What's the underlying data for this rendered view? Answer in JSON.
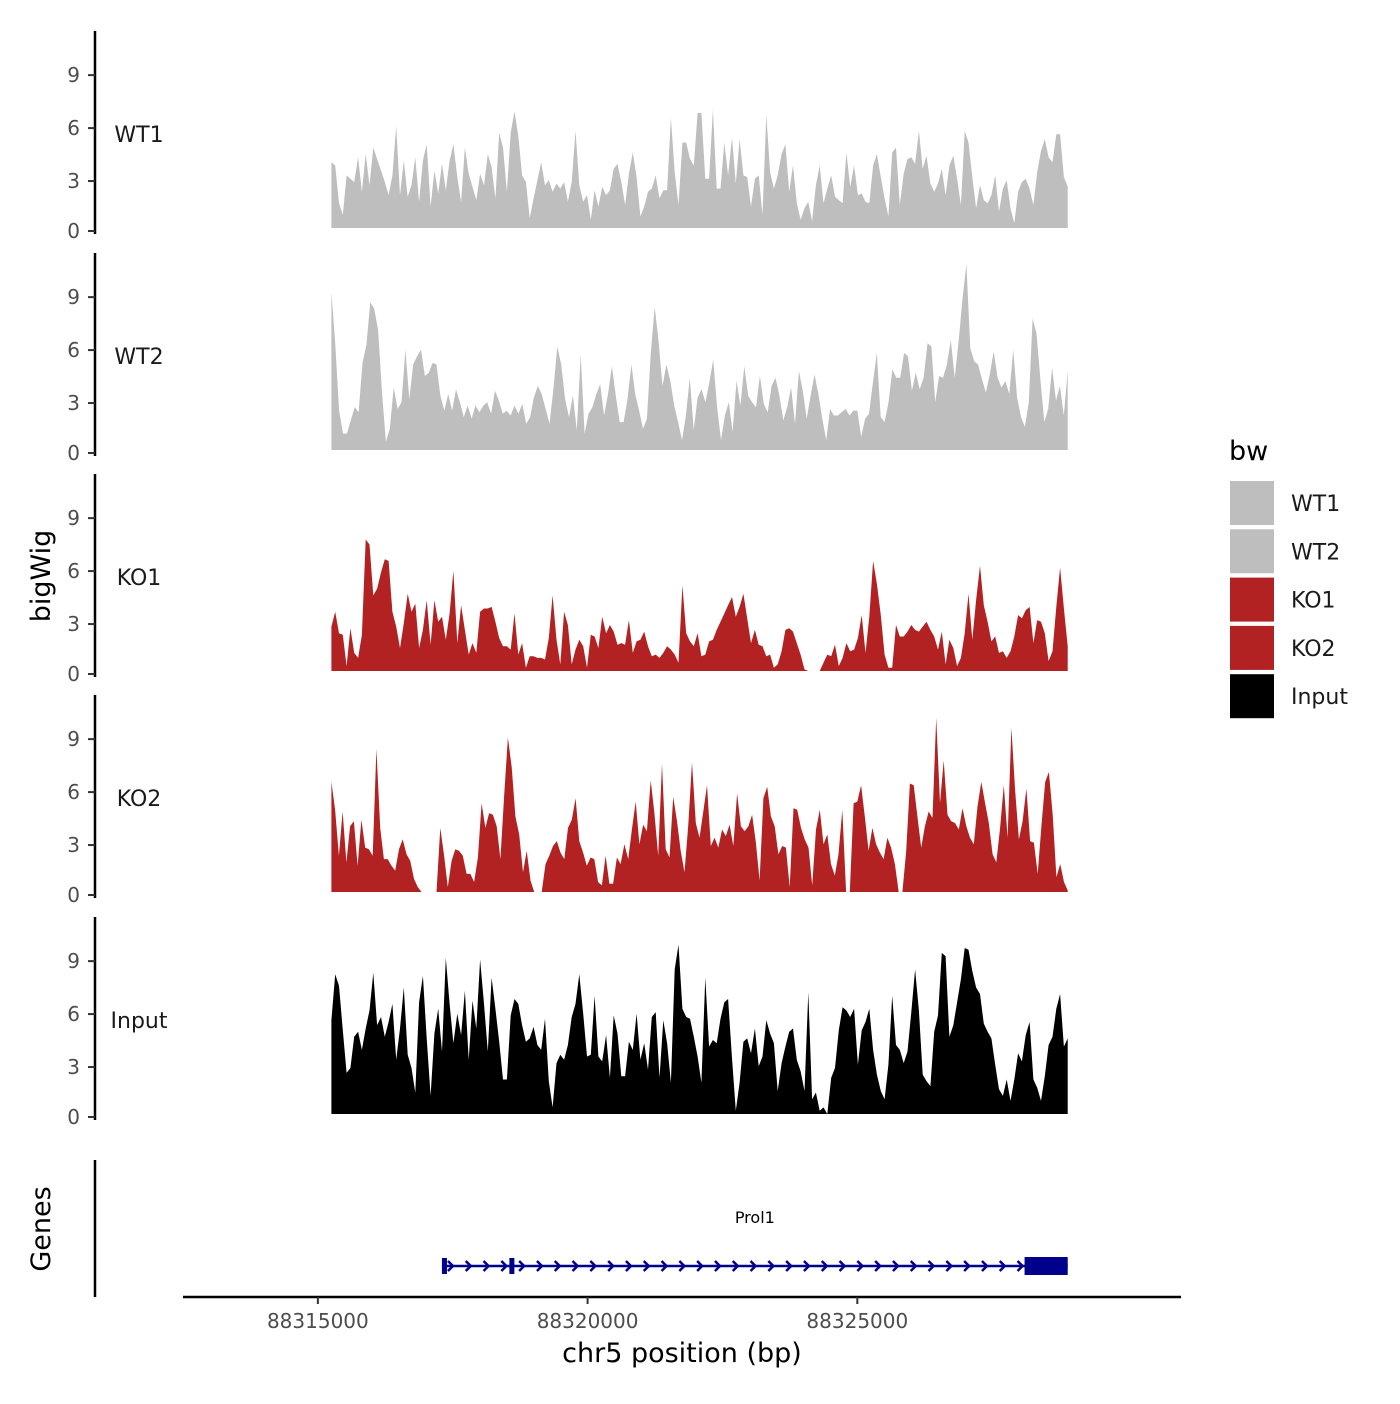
{
  "chart_data": {
    "type": "area",
    "chromosome": "chr5",
    "xlabel": "chr5 position (bp)",
    "ylabel": "bigWig",
    "genes_label": "Genes",
    "xlim": [
      88312500,
      88331000
    ],
    "x_ticks": [
      {
        "value": 88315000,
        "label": "88315000"
      },
      {
        "value": 88320000,
        "label": "88320000"
      },
      {
        "value": 88325000,
        "label": "88325000"
      }
    ],
    "ylim": [
      0,
      11.5
    ],
    "y_ticks": [
      {
        "value": 0,
        "label": "0"
      },
      {
        "value": 3,
        "label": "3"
      },
      {
        "value": 6,
        "label": "6"
      },
      {
        "value": 9,
        "label": "9"
      }
    ],
    "x_start": 88315250,
    "x_end": 88328900,
    "bin_size": 130,
    "legend": {
      "title": "bw",
      "entries": [
        {
          "name": "WT1",
          "color": "#bebebe"
        },
        {
          "name": "WT2",
          "color": "#bebebe"
        },
        {
          "name": "KO1",
          "color": "#b22222"
        },
        {
          "name": "KO2",
          "color": "#b22222"
        },
        {
          "name": "Input",
          "color": "#000000"
        }
      ]
    },
    "series": [
      {
        "name": "WT1",
        "color": "#bebebe",
        "values": [
          4.0,
          3.8,
          1.5,
          0.8,
          3.2,
          3.0,
          2.8,
          4.3,
          2.2,
          4.5,
          2.6,
          4.9,
          4.2,
          3.5,
          2.8,
          2.0,
          3.2,
          6.2,
          2.0,
          4.1,
          1.9,
          2.6,
          4.3,
          1.6,
          4.1,
          5.1,
          1.3,
          3.5,
          2.1,
          3.9,
          2.3,
          4.1,
          5.1,
          3.1,
          1.6,
          4.9,
          3.3,
          2.5,
          1.7,
          3.3,
          2.6,
          4.5,
          3.7,
          1.8,
          5.8,
          4.9,
          2.2,
          5.8,
          7.1,
          5.6,
          3.2,
          2.8,
          0.6,
          1.8,
          2.9,
          4.0,
          2.6,
          2.9,
          2.2,
          2.7,
          2.4,
          2.8,
          1.6,
          2.8,
          5.9,
          2.6,
          1.6,
          2.0,
          0.5,
          2.3,
          1.3,
          2.5,
          2.0,
          2.3,
          3.6,
          3.9,
          2.8,
          1.4,
          3.3,
          4.6,
          3.1,
          0.7,
          1.3,
          2.2,
          2.4,
          3.2,
          1.8,
          2.3,
          2.3,
          6.7,
          3.4,
          1.4,
          5.2,
          5.2,
          4.2,
          3.8,
          7.0,
          7.0,
          3.0,
          3.0,
          7.2,
          2.4,
          2.4,
          5.2,
          3.2,
          5.5,
          2.7,
          5.4,
          3.2,
          3.1,
          1.3,
          3.0,
          3.2,
          0.8,
          6.9,
          3.4,
          2.4,
          3.2,
          4.5,
          5.1,
          2.2,
          3.8,
          1.5,
          0.5,
          1.2,
          1.6,
          0.4,
          2.6,
          3.8,
          1.5,
          2.4,
          3.2,
          1.9,
          1.7,
          1.5,
          4.6,
          2.5,
          3.8,
          2.0,
          2.1,
          1.6,
          1.5,
          3.8,
          4.5,
          3.1,
          1.8,
          0.7,
          4.6,
          4.9,
          1.4,
          3.3,
          4.2,
          4.3,
          3.9,
          5.9,
          3.6,
          4.4,
          2.7,
          2.2,
          2.7,
          3.6,
          2.0,
          3.8,
          4.4,
          3.0,
          1.4,
          5.9,
          5.2,
          3.1,
          1.2,
          2.6,
          1.7,
          1.5,
          2.0,
          3.2,
          1.0,
          2.4,
          2.9,
          1.2,
          0.3,
          2.2,
          2.8,
          3.0,
          2.4,
          1.4,
          3.4,
          4.7,
          5.4,
          4.3,
          4.0,
          5.7,
          5.7,
          3.1,
          2.5
        ]
      },
      {
        "name": "WT2",
        "color": "#bebebe",
        "values": [
          9.6,
          6.5,
          2.4,
          1.0,
          1.0,
          1.8,
          2.6,
          2.3,
          5.3,
          6.4,
          9.0,
          8.6,
          7.3,
          3.5,
          0.5,
          1.3,
          3.8,
          2.5,
          2.9,
          6.1,
          3.1,
          5.2,
          5.7,
          6.1,
          4.5,
          4.7,
          5.3,
          5.2,
          3.3,
          2.4,
          3.4,
          2.4,
          3.7,
          2.9,
          2.0,
          2.7,
          1.9,
          2.7,
          2.3,
          2.7,
          2.9,
          2.2,
          3.6,
          3.0,
          2.2,
          2.4,
          2.1,
          2.7,
          2.2,
          2.8,
          1.6,
          2.0,
          3.2,
          3.9,
          3.4,
          2.5,
          1.6,
          3.7,
          6.3,
          5.2,
          3.1,
          2.0,
          3.3,
          1.2,
          5.8,
          1.0,
          2.2,
          2.6,
          3.4,
          4.0,
          2.1,
          3.4,
          5.1,
          3.3,
          1.7,
          1.7,
          3.1,
          5.2,
          3.4,
          2.4,
          1.3,
          1.9,
          5.9,
          8.7,
          6.6,
          3.9,
          5.2,
          4.2,
          2.7,
          1.7,
          0.6,
          2.1,
          4.4,
          1.2,
          3.2,
          3.7,
          2.9,
          4.1,
          5.5,
          2.6,
          0.6,
          2.1,
          2.9,
          1.1,
          4.2,
          2.7,
          5.1,
          3.3,
          2.9,
          2.6,
          4.5,
          2.8,
          2.3,
          3.9,
          4.4,
          3.3,
          1.8,
          2.6,
          3.8,
          1.6,
          4.8,
          3.6,
          1.9,
          3.3,
          4.6,
          3.4,
          1.9,
          0.6,
          2.5,
          2.1,
          2.1,
          2.3,
          2.5,
          2.1,
          2.4,
          2.4,
          0.8,
          1.9,
          2.2,
          4.1,
          5.9,
          2.0,
          1.7,
          2.9,
          4.9,
          4.4,
          4.4,
          5.9,
          5.7,
          3.6,
          4.7,
          3.7,
          4.4,
          6.5,
          6.3,
          2.9,
          4.5,
          4.4,
          5.2,
          6.7,
          4.4,
          6.6,
          9.2,
          11.3,
          6.2,
          5.4,
          5.2,
          4.3,
          3.5,
          4.6,
          6.0,
          4.4,
          3.8,
          4.2,
          3.4,
          6.1,
          3.2,
          2.0,
          1.4,
          2.9,
          8.0,
          7.1,
          4.3,
          1.7,
          2.5,
          5.0,
          3.0,
          3.9,
          2.1,
          4.8
        ]
      },
      {
        "name": "KO1",
        "color": "#b22222",
        "values": [
          2.7,
          3.6,
          2.3,
          2.2,
          0.3,
          2.6,
          1.1,
          0.8,
          2.2,
          8.0,
          7.7,
          4.6,
          5.0,
          6.0,
          6.8,
          6.7,
          3.6,
          2.7,
          1.4,
          2.9,
          4.7,
          3.6,
          4.1,
          1.4,
          2.5,
          4.3,
          1.6,
          4.3,
          3.0,
          3.3,
          1.9,
          3.5,
          6.1,
          1.7,
          4.0,
          2.5,
          1.0,
          1.7,
          1.1,
          3.6,
          3.8,
          3.8,
          3.9,
          3.0,
          2.0,
          1.5,
          1.5,
          1.3,
          3.5,
          1.0,
          1.7,
          0.2,
          0.9,
          0.9,
          0.8,
          0.8,
          0.7,
          2.0,
          4.6,
          1.9,
          0.4,
          3.6,
          2.8,
          0.4,
          1.3,
          1.9,
          1.5,
          0.2,
          2.2,
          2.1,
          1.4,
          3.3,
          2.3,
          2.8,
          2.4,
          1.6,
          1.7,
          1.6,
          3.1,
          1.1,
          1.8,
          1.9,
          2.4,
          1.5,
          0.9,
          1.0,
          0.8,
          1.1,
          1.5,
          1.3,
          1.0,
          0.5,
          5.2,
          2.3,
          1.8,
          1.5,
          2.3,
          0.9,
          1.0,
          1.8,
          1.9,
          2.5,
          3.0,
          3.5,
          4.0,
          4.5,
          3.3,
          3.9,
          4.7,
          3.2,
          1.7,
          2.5,
          1.6,
          1.5,
          0.9,
          1.0,
          0.2,
          0.4,
          1.2,
          2.5,
          2.6,
          2.4,
          1.7,
          1.0,
          0.1,
          0.0,
          0.0,
          0.0,
          0.0,
          0.5,
          1.0,
          0.9,
          1.6,
          0.3,
          0.8,
          1.7,
          1.2,
          1.3,
          2.0,
          3.4,
          1.1,
          3.3,
          6.7,
          5.3,
          3.4,
          1.0,
          0.2,
          0.2,
          2.8,
          2.1,
          2.1,
          2.4,
          2.8,
          2.5,
          2.4,
          2.7,
          3.0,
          2.5,
          2.1,
          1.3,
          2.4,
          0.4,
          1.9,
          1.4,
          0.3,
          0.8,
          2.3,
          4.7,
          1.9,
          4.3,
          6.4,
          4.0,
          3.0,
          1.8,
          2.1,
          1.1,
          1.2,
          0.8,
          1.2,
          2.1,
          3.4,
          3.2,
          3.7,
          3.9,
          1.7,
          3.1,
          3.0,
          2.3,
          0.6,
          1.2,
          3.9,
          6.3,
          3.8,
          1.5
        ]
      },
      {
        "name": "KO2",
        "color": "#b22222",
        "values": [
          6.7,
          5.0,
          2.2,
          4.9,
          1.8,
          4.0,
          4.3,
          1.6,
          4.4,
          2.7,
          2.6,
          2.2,
          8.7,
          3.9,
          2.0,
          2.0,
          1.6,
          1.3,
          2.6,
          3.2,
          2.3,
          1.9,
          0.8,
          0.3,
          0.0,
          0.0,
          0.0,
          0.0,
          0.0,
          3.9,
          2.2,
          0.3,
          1.9,
          2.6,
          2.5,
          2.2,
          1.1,
          1.1,
          0.6,
          2.1,
          5.4,
          3.9,
          4.8,
          4.7,
          4.0,
          2.0,
          5.9,
          9.4,
          7.6,
          4.6,
          3.5,
          1.2,
          2.5,
          0.7,
          0.0,
          0.0,
          0.0,
          1.7,
          2.2,
          2.8,
          3.1,
          2.4,
          2.0,
          3.9,
          4.4,
          5.7,
          3.1,
          2.4,
          1.6,
          2.1,
          2.0,
          0.6,
          0.4,
          2.2,
          0.5,
          0.5,
          2.1,
          1.7,
          2.9,
          2.0,
          3.8,
          5.5,
          2.9,
          4.1,
          3.7,
          6.8,
          4.8,
          2.2,
          7.8,
          2.6,
          2.1,
          5.8,
          4.3,
          2.5,
          1.2,
          4.1,
          7.9,
          4.2,
          3.3,
          4.9,
          6.5,
          2.8,
          3.3,
          2.7,
          3.8,
          3.4,
          4.1,
          2.8,
          6.0,
          4.0,
          3.7,
          4.0,
          4.7,
          3.0,
          0.7,
          5.7,
          6.4,
          4.6,
          4.0,
          2.3,
          2.8,
          2.7,
          0.3,
          5.1,
          5.0,
          3.9,
          3.2,
          2.7,
          0.4,
          3.8,
          5.0,
          2.9,
          3.5,
          1.7,
          1.0,
          2.3,
          5.0,
          0.0,
          0.0,
          5.4,
          5.5,
          6.5,
          4.6,
          2.5,
          3.9,
          2.9,
          2.4,
          2.0,
          3.3,
          2.7,
          1.7,
          0.0,
          0.0,
          2.5,
          6.6,
          6.5,
          4.6,
          2.7,
          4.0,
          4.9,
          4.5,
          10.6,
          5.4,
          8.0,
          4.7,
          4.3,
          4.2,
          3.8,
          5.1,
          4.0,
          3.3,
          2.9,
          5.2,
          6.7,
          5.4,
          4.2,
          2.3,
          1.8,
          3.9,
          6.5,
          3.3,
          10.0,
          6.2,
          3.2,
          4.3,
          6.3,
          3.1,
          3.0,
          1.1,
          4.0,
          6.7,
          7.3,
          4.7,
          0.9,
          1.7,
          0.6,
          0.1
        ]
      },
      {
        "name": "Input",
        "color": "#000000",
        "values": [
          5.7,
          8.5,
          7.8,
          5.1,
          2.5,
          2.8,
          4.7,
          5.0,
          3.9,
          5.2,
          6.3,
          8.6,
          5.4,
          5.9,
          4.7,
          5.6,
          6.7,
          3.3,
          5.2,
          7.7,
          3.6,
          2.8,
          1.3,
          6.8,
          8.4,
          4.6,
          1.1,
          4.9,
          6.4,
          3.8,
          9.5,
          6.7,
          4.3,
          6.1,
          4.8,
          7.5,
          3.3,
          6.9,
          5.2,
          9.4,
          6.7,
          3.8,
          8.3,
          6.4,
          4.4,
          2.1,
          2.1,
          6.0,
          7.0,
          6.7,
          5.4,
          4.4,
          4.6,
          5.3,
          4.2,
          3.9,
          5.8,
          2.0,
          0.4,
          3.1,
          3.6,
          3.3,
          4.2,
          5.9,
          6.7,
          8.5,
          6.1,
          3.5,
          3.6,
          7.2,
          3.5,
          3.2,
          4.8,
          2.2,
          6.0,
          4.9,
          2.3,
          2.3,
          4.4,
          3.9,
          6.1,
          3.3,
          4.3,
          2.7,
          5.9,
          6.2,
          2.2,
          5.7,
          4.3,
          1.9,
          8.8,
          10.3,
          6.4,
          5.9,
          5.8,
          4.7,
          3.5,
          1.9,
          8.3,
          4.1,
          4.5,
          4.3,
          5.8,
          6.8,
          7.0,
          3.4,
          0.2,
          1.9,
          4.4,
          4.6,
          3.7,
          5.2,
          2.9,
          3.5,
          5.7,
          4.9,
          4.3,
          1.4,
          3.1,
          4.1,
          5.0,
          5.2,
          3.3,
          2.6,
          1.4,
          7.4,
          0.9,
          1.3,
          0.2,
          0.4,
          0.0,
          2.2,
          2.8,
          5.1,
          6.5,
          6.3,
          5.9,
          6.4,
          3.0,
          5.1,
          5.6,
          6.4,
          3.9,
          2.4,
          1.4,
          0.9,
          3.0,
          7.2,
          4.2,
          3.9,
          3.1,
          3.8,
          6.2,
          8.8,
          6.3,
          2.4,
          2.0,
          1.7,
          5.0,
          6.0,
          9.8,
          9.6,
          4.7,
          5.4,
          6.8,
          8.2,
          10.1,
          10.0,
          8.7,
          7.7,
          7.3,
          5.5,
          5.0,
          4.6,
          3.0,
          1.5,
          1.1,
          2.1,
          0.8,
          2.1,
          3.7,
          3.2,
          4.8,
          5.6,
          2.1,
          1.6,
          0.8,
          2.3,
          4.2,
          4.7,
          6.4,
          7.3,
          4.1,
          4.6
        ]
      }
    ],
    "gene": {
      "name": "Prol1",
      "start": 88317300,
      "end": 88328900,
      "color": "#00008b",
      "strand": "+",
      "exons": [
        {
          "start": 88317300,
          "end": 88317380,
          "kind": "utr"
        },
        {
          "start": 88318550,
          "end": 88318620,
          "kind": "utr"
        },
        {
          "start": 88328100,
          "end": 88328900,
          "kind": "cds"
        }
      ]
    }
  }
}
